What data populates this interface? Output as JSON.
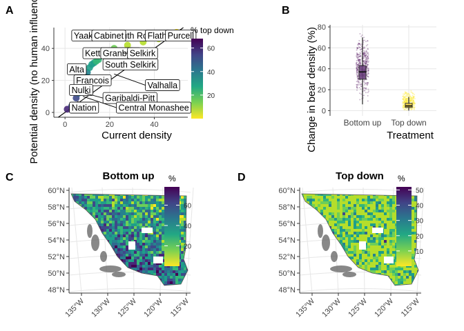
{
  "panel_letters": [
    "A",
    "B",
    "C",
    "D"
  ],
  "colors": {
    "viridis": [
      "#fde725",
      "#b5de2b",
      "#6ece58",
      "#35b779",
      "#1f9e89",
      "#26828e",
      "#31688e",
      "#3e4989",
      "#482878",
      "#440154"
    ],
    "land_outline": "#555555",
    "grid": "#e6e6e6"
  },
  "chart_data": [
    {
      "id": "A",
      "type": "scatter",
      "xlabel": "Current density",
      "ylabel": "Potential density (no human influence)",
      "xlim": [
        -5,
        55
      ],
      "ylim": [
        -3,
        53
      ],
      "xticks": [
        0,
        20,
        40
      ],
      "yticks": [
        0,
        20,
        40
      ],
      "colorbar": {
        "title": "% top down",
        "range": [
          0,
          68
        ],
        "ticks": [
          20,
          40,
          60
        ]
      },
      "points": [
        {
          "x": 1,
          "y": 2,
          "c": 60
        },
        {
          "x": 3,
          "y": 4,
          "c": 55
        },
        {
          "x": 5,
          "y": 9,
          "c": 50
        },
        {
          "x": 6,
          "y": 12,
          "c": 48
        },
        {
          "x": 7,
          "y": 15,
          "c": 45
        },
        {
          "x": 8,
          "y": 20,
          "c": 40
        },
        {
          "x": 9,
          "y": 23,
          "c": 38
        },
        {
          "x": 10,
          "y": 25,
          "c": 35
        },
        {
          "x": 11,
          "y": 28,
          "c": 32
        },
        {
          "x": 12,
          "y": 30,
          "c": 30
        },
        {
          "x": 13,
          "y": 31,
          "c": 28
        },
        {
          "x": 14,
          "y": 32,
          "c": 25
        },
        {
          "x": 15,
          "y": 33,
          "c": 22
        },
        {
          "x": 18,
          "y": 35,
          "c": 20
        },
        {
          "x": 20,
          "y": 38,
          "c": 15
        },
        {
          "x": 22,
          "y": 40,
          "c": 12
        },
        {
          "x": 28,
          "y": 42,
          "c": 8
        },
        {
          "x": 35,
          "y": 44,
          "c": 6
        },
        {
          "x": 42,
          "y": 46,
          "c": 5
        },
        {
          "x": 48,
          "y": 48,
          "c": 4
        },
        {
          "x": 50,
          "y": 50,
          "c": 3
        }
      ],
      "labels": [
        {
          "text": "Yaak",
          "x": 5,
          "y": 46,
          "tx": 3,
          "ty": 48
        },
        {
          "text": "South Rockies",
          "x": 14,
          "y": 46,
          "tx": 20,
          "ty": 48
        },
        {
          "text": "Cabinet",
          "x": 16,
          "y": 45,
          "tx": 12,
          "ty": 48
        },
        {
          "text": "Flathead",
          "x": 38,
          "y": 46,
          "tx": 36,
          "ty": 48
        },
        {
          "text": "Purcell",
          "x": 48,
          "y": 48,
          "tx": 45,
          "ty": 48
        },
        {
          "text": "Kettle-Granby",
          "x": 10,
          "y": 38,
          "tx": 8,
          "ty": 37
        },
        {
          "text": "Granby",
          "x": 16,
          "y": 37,
          "tx": 16,
          "ty": 37
        },
        {
          "text": "Selkirk",
          "x": 26,
          "y": 37,
          "tx": 28,
          "ty": 37
        },
        {
          "text": "South Selkirk",
          "x": 18,
          "y": 31,
          "tx": 17,
          "ty": 30
        },
        {
          "text": "Alta",
          "x": 5,
          "y": 27,
          "tx": 1,
          "ty": 27
        },
        {
          "text": "Francois",
          "x": 6,
          "y": 22,
          "tx": 4,
          "ty": 20
        },
        {
          "text": "Valhalla",
          "x": 22,
          "y": 24,
          "tx": 36,
          "ty": 17
        },
        {
          "text": "Nulki",
          "x": 5,
          "y": 15,
          "tx": 2,
          "ty": 14
        },
        {
          "text": "Garibaldi-Pitt",
          "x": 9,
          "y": 12,
          "tx": 17,
          "ty": 9
        },
        {
          "text": "Nation",
          "x": 6,
          "y": 7,
          "tx": 2,
          "ty": 3
        },
        {
          "text": "Central Monashee",
          "x": 8,
          "y": 10,
          "tx": 23,
          "ty": 3
        }
      ]
    },
    {
      "id": "B",
      "type": "box",
      "xlabel": "Treatment",
      "ylabel": "Change in bear density (%)",
      "ylim": [
        -5,
        82
      ],
      "yticks": [
        0,
        20,
        40,
        60,
        80
      ],
      "categories": [
        "Bottom up",
        "Top down"
      ],
      "groups": [
        {
          "category": "Bottom up",
          "min": 6,
          "q1": 30,
          "median": 37,
          "q3": 43,
          "max": 70,
          "point_range": [
            6,
            78
          ],
          "color": "#440154"
        },
        {
          "category": "Top down",
          "min": 0,
          "q1": 3,
          "median": 4.5,
          "q3": 7,
          "max": 13,
          "point_range": [
            0,
            22
          ],
          "color": "#fde725"
        }
      ]
    },
    {
      "id": "C",
      "type": "heatmap",
      "title": "Bottom up",
      "legend_title": "%",
      "scale_range": [
        0,
        78
      ],
      "scale_ticks": [
        20,
        40,
        60
      ],
      "lat_ticks": [
        "60°N",
        "58°N",
        "56°N",
        "54°N",
        "52°N",
        "50°N",
        "48°N"
      ],
      "lon_ticks": [
        "135°W",
        "130°W",
        "125°W",
        "120°W",
        "115°W"
      ],
      "value_bias": 0.55
    },
    {
      "id": "D",
      "type": "heatmap",
      "title": "Top down",
      "legend_title": "%",
      "scale_range": [
        0,
        52
      ],
      "scale_ticks": [
        10,
        20,
        30,
        40,
        50
      ],
      "lat_ticks": [
        "60°N",
        "58°N",
        "56°N",
        "54°N",
        "52°N",
        "50°N",
        "48°N"
      ],
      "lon_ticks": [
        "135°W",
        "130°W",
        "125°W",
        "120°W",
        "115°W"
      ],
      "value_bias": 0.08
    }
  ]
}
